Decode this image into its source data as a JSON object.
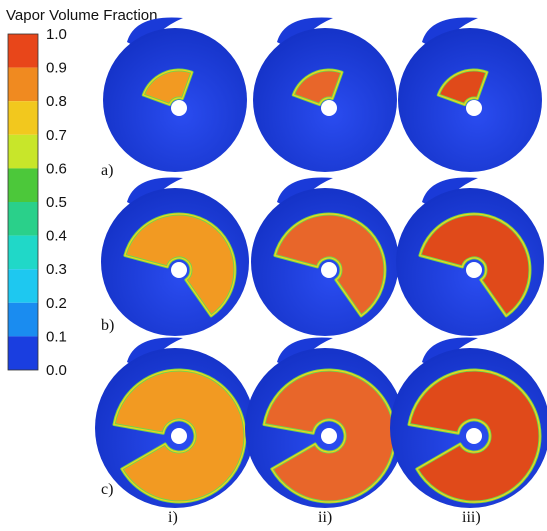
{
  "legend": {
    "title": "Vapor Volume Fraction",
    "labels": [
      "1.0",
      "0.9",
      "0.8",
      "0.7",
      "0.6",
      "0.5",
      "0.4",
      "0.3",
      "0.2",
      "0.1",
      "0.0"
    ]
  },
  "rows": [
    "a)",
    "b)",
    "c)"
  ],
  "columns": [
    "i)",
    "ii)",
    "iii)"
  ]
}
